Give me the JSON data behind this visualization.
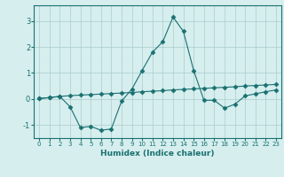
{
  "xlabel": "Humidex (Indice chaleur)",
  "ylabel": "",
  "background_color": "#d6eeee",
  "grid_color": "#aacccc",
  "line_color": "#1a7070",
  "xlim": [
    -0.5,
    23.5
  ],
  "ylim": [
    -1.5,
    3.6
  ],
  "yticks": [
    -1,
    0,
    1,
    2,
    3
  ],
  "xticks": [
    0,
    1,
    2,
    3,
    4,
    5,
    6,
    7,
    8,
    9,
    10,
    11,
    12,
    13,
    14,
    15,
    16,
    17,
    18,
    19,
    20,
    21,
    22,
    23
  ],
  "x_data": [
    0,
    1,
    2,
    3,
    4,
    5,
    6,
    7,
    8,
    9,
    10,
    11,
    12,
    13,
    14,
    15,
    16,
    17,
    18,
    19,
    20,
    21,
    22,
    23
  ],
  "y_data": [
    0.02,
    0.05,
    0.1,
    -0.3,
    -1.1,
    -1.05,
    -1.2,
    -1.15,
    -0.08,
    0.38,
    1.1,
    1.8,
    2.2,
    3.15,
    2.6,
    1.1,
    -0.05,
    -0.05,
    -0.35,
    -0.2,
    0.12,
    0.2,
    0.28,
    0.35
  ],
  "y_linear": [
    0.02,
    0.06,
    0.1,
    0.13,
    0.15,
    0.17,
    0.19,
    0.21,
    0.23,
    0.25,
    0.28,
    0.3,
    0.32,
    0.35,
    0.37,
    0.39,
    0.41,
    0.43,
    0.45,
    0.47,
    0.5,
    0.52,
    0.54,
    0.56
  ],
  "marker": "D",
  "markersize": 2.5,
  "linewidth": 0.8
}
